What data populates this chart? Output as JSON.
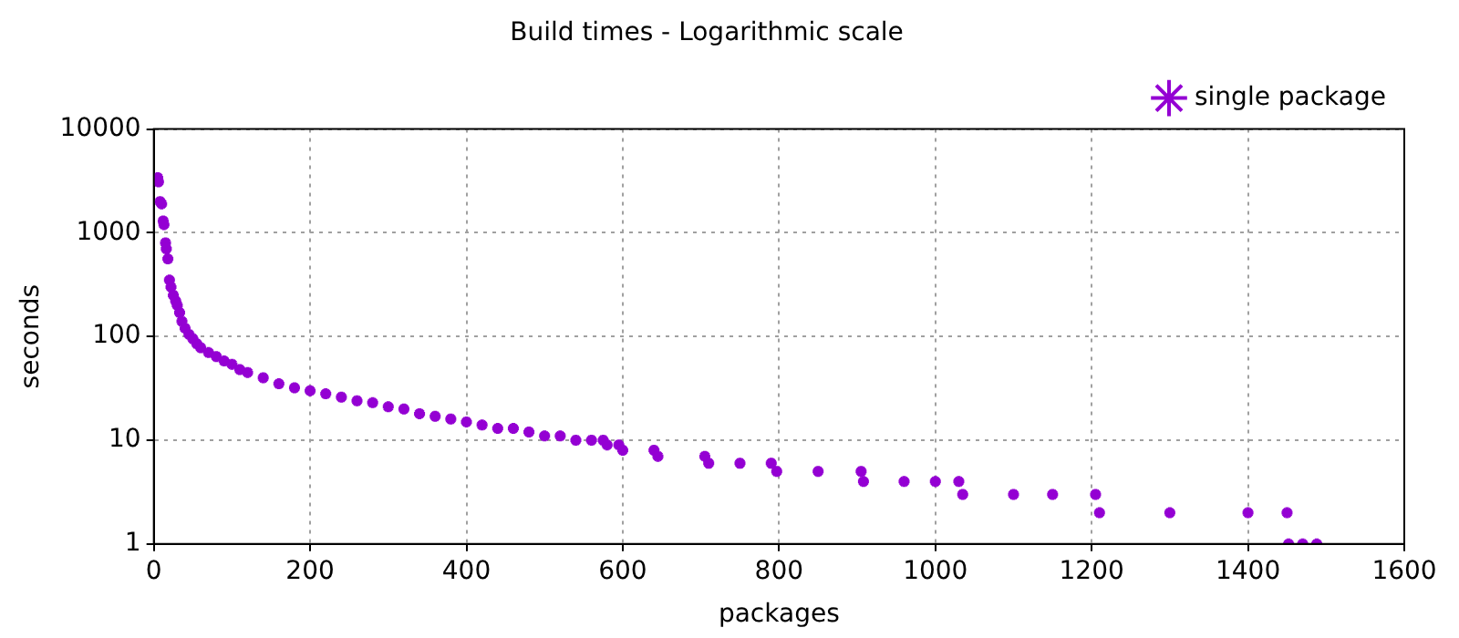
{
  "chart_data": {
    "type": "scatter",
    "title": "Build times - Logarithmic scale",
    "xlabel": "packages",
    "ylabel": "seconds",
    "xlim": [
      0,
      1600
    ],
    "xticks": [
      0,
      200,
      400,
      600,
      800,
      1000,
      1200,
      1400,
      1600
    ],
    "ylim": [
      1,
      10000
    ],
    "yticks": [
      1,
      10,
      100,
      1000,
      10000
    ],
    "log": "y",
    "grid": true,
    "legend": "top right",
    "marker": "cross",
    "series": [
      {
        "name": "single package",
        "color": "#9400d3",
        "x": [
          5,
          6,
          8,
          10,
          12,
          13,
          15,
          16,
          18,
          20,
          22,
          25,
          28,
          30,
          33,
          36,
          40,
          45,
          50,
          55,
          60,
          70,
          80,
          90,
          100,
          110,
          120,
          140,
          160,
          180,
          200,
          220,
          240,
          260,
          280,
          300,
          320,
          340,
          360,
          380,
          400,
          420,
          440,
          460,
          480,
          500,
          520,
          540,
          560,
          575,
          580,
          595,
          600,
          640,
          645,
          705,
          710,
          750,
          790,
          797,
          850,
          905,
          908,
          960,
          1000,
          1030,
          1035,
          1100,
          1150,
          1205,
          1210,
          1300,
          1400,
          1450,
          1452,
          1470,
          1488
        ],
        "values": [
          3400,
          3100,
          2000,
          1900,
          1300,
          1200,
          800,
          700,
          560,
          350,
          300,
          250,
          220,
          200,
          170,
          140,
          120,
          105,
          95,
          85,
          78,
          70,
          64,
          58,
          54,
          48,
          45,
          40,
          35,
          32,
          30,
          28,
          26,
          24,
          23,
          21,
          20,
          18,
          17,
          16,
          15,
          14,
          13,
          13,
          12,
          11,
          11,
          10,
          10,
          10,
          9,
          9,
          8,
          8,
          7,
          7,
          6,
          6,
          6,
          5,
          5,
          5,
          4,
          4,
          4,
          4,
          3,
          3,
          3,
          3,
          2,
          2,
          2,
          2,
          1,
          1,
          1
        ]
      }
    ]
  }
}
